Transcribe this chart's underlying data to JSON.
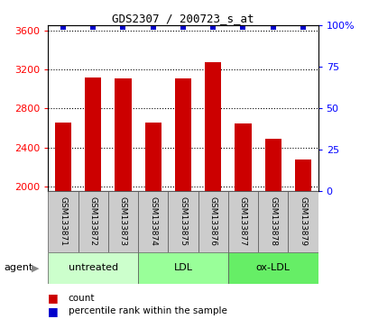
{
  "title": "GDS2307 / 200723_s_at",
  "samples": [
    "GSM133871",
    "GSM133872",
    "GSM133873",
    "GSM133874",
    "GSM133875",
    "GSM133876",
    "GSM133877",
    "GSM133878",
    "GSM133879"
  ],
  "counts": [
    2660,
    3120,
    3110,
    2660,
    3105,
    3270,
    2650,
    2490,
    2280
  ],
  "percentiles": [
    99,
    99,
    99,
    99,
    99,
    99,
    99,
    99,
    99
  ],
  "groups": [
    {
      "label": "untreated",
      "start": 0,
      "end": 3,
      "color": "#ccffcc"
    },
    {
      "label": "LDL",
      "start": 3,
      "end": 6,
      "color": "#99ff99"
    },
    {
      "label": "ox-LDL",
      "start": 6,
      "end": 9,
      "color": "#66ee66"
    }
  ],
  "ylim_left": [
    1950,
    3650
  ],
  "ylim_right": [
    0,
    100
  ],
  "yticks_left": [
    2000,
    2400,
    2800,
    3200,
    3600
  ],
  "yticks_right": [
    0,
    25,
    50,
    75,
    100
  ],
  "bar_color": "#cc0000",
  "dot_color": "#0000cc",
  "background_color": "#ffffff",
  "sample_box_color": "#cccccc",
  "agent_label": "agent",
  "legend_count": "count",
  "legend_percentile": "percentile rank within the sample",
  "bar_bottom": 1950,
  "bar_width": 0.55
}
